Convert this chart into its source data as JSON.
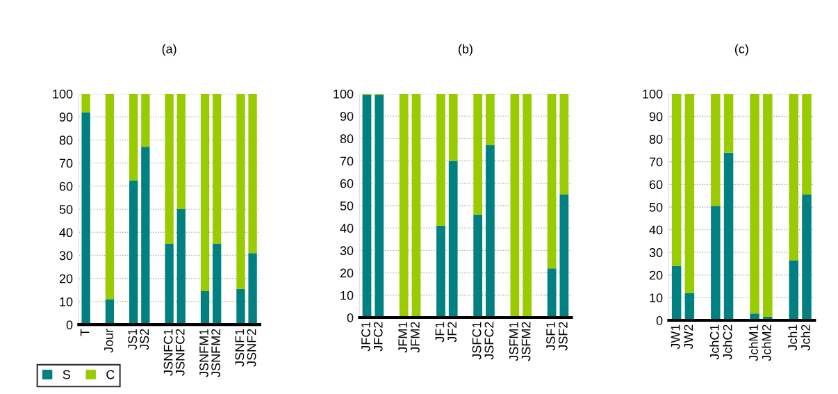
{
  "chart_data": [
    {
      "type": "bar",
      "stacked": true,
      "title": "(a)",
      "categories": [
        "T",
        null,
        "Jour",
        null,
        "JS1",
        "JS2",
        null,
        "JSNFC1",
        "JSNFC2",
        null,
        "JSNFM1",
        "JSNFM2",
        null,
        "JSNF1",
        "JSNF2"
      ],
      "ylim": [
        0,
        100
      ],
      "yticks": [
        0,
        10,
        20,
        30,
        40,
        50,
        60,
        70,
        80,
        90,
        100
      ],
      "grid": "y",
      "legend": "bottom left",
      "series": [
        {
          "name": "S",
          "color": "#008080",
          "values": [
            92,
            null,
            11,
            null,
            62.5,
            77,
            null,
            35,
            50,
            null,
            14.5,
            35,
            null,
            15.5,
            31
          ]
        },
        {
          "name": "C",
          "color": "#99cc00",
          "values": [
            8,
            null,
            89,
            null,
            37.5,
            23,
            null,
            65,
            50,
            null,
            85.5,
            65,
            null,
            84.5,
            69
          ]
        }
      ]
    },
    {
      "type": "bar",
      "stacked": true,
      "title": "(b)",
      "categories": [
        "JFC1",
        "JFC2",
        null,
        "JFM1",
        "JFM2",
        null,
        "JF1",
        "JF2",
        null,
        "JSFC1",
        "JSFC2",
        null,
        "JSFM1",
        "JSFM2",
        null,
        "JSF1",
        "JSF2"
      ],
      "ylim": [
        0,
        100
      ],
      "yticks": [
        0,
        10,
        20,
        30,
        40,
        50,
        60,
        70,
        80,
        90,
        100
      ],
      "grid": "y",
      "series": [
        {
          "color": "#008080",
          "values": [
            99.5,
            99.5,
            null,
            0,
            0,
            null,
            41,
            70,
            null,
            46,
            77,
            null,
            0,
            0,
            null,
            22,
            55
          ]
        },
        {
          "color": "#99cc00",
          "values": [
            0.5,
            0.5,
            null,
            100,
            100,
            null,
            59,
            30,
            null,
            54,
            23,
            null,
            100,
            100,
            null,
            78,
            45
          ]
        }
      ]
    },
    {
      "type": "bar",
      "stacked": true,
      "title": "(c)",
      "categories": [
        "JW1",
        "JW2",
        null,
        "JchC1",
        "JchC2",
        null,
        "JchM1",
        "JchM2",
        null,
        "Jch1",
        "Jch2"
      ],
      "ylim": [
        0,
        100
      ],
      "yticks": [
        0,
        10,
        20,
        30,
        40,
        50,
        60,
        70,
        80,
        90,
        100
      ],
      "grid": "y",
      "series": [
        {
          "color": "#008080",
          "values": [
            24,
            12,
            null,
            50.5,
            74,
            null,
            3,
            1.5,
            null,
            26.5,
            55.5
          ]
        },
        {
          "color": "#99cc00",
          "values": [
            76,
            88,
            null,
            49.5,
            26,
            null,
            97,
            98.5,
            null,
            73.5,
            44.5
          ]
        }
      ]
    }
  ]
}
